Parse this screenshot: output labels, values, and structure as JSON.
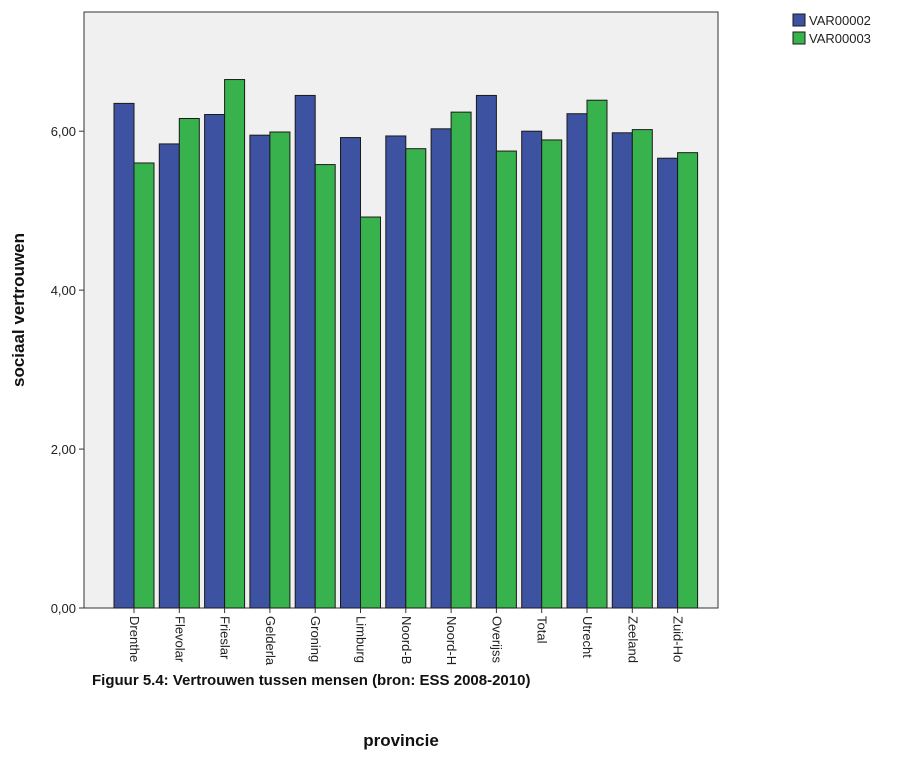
{
  "chart_data": {
    "type": "bar",
    "categories": [
      "Drenthe",
      "Flevoland",
      "Friesland",
      "Gelderland",
      "Groningen",
      "Limburg",
      "Noord-Brabant",
      "Noord-Holland",
      "Overijssel",
      "Total",
      "Utrecht",
      "Zeeland",
      "Zuid-Holland"
    ],
    "category_labels_visible": [
      "Drenthe",
      "Flevolar",
      "Frieslar",
      "Gelderla",
      "Groning",
      "Limburg",
      "Noord-B",
      "Noord-H",
      "Overijss",
      "Total",
      "Utrecht",
      "Zeeland",
      "Zuid-Ho"
    ],
    "series": [
      {
        "name": "VAR00002",
        "color": "#3d52a1",
        "values": [
          6.35,
          5.84,
          6.21,
          5.95,
          6.45,
          5.92,
          5.94,
          6.03,
          6.45,
          6.0,
          6.22,
          5.98,
          5.66
        ]
      },
      {
        "name": "VAR00003",
        "color": "#37b24d",
        "values": [
          5.6,
          6.16,
          6.65,
          5.99,
          5.58,
          4.92,
          5.78,
          6.24,
          5.75,
          5.89,
          6.39,
          6.02,
          5.73
        ]
      }
    ],
    "xlabel": "provincie",
    "ylabel": "sociaal vertrouwen",
    "ylim": [
      0,
      7.5
    ],
    "yticks": [
      "0,00",
      "2,00",
      "4,00",
      "6,00"
    ],
    "ytick_values": [
      0,
      2,
      4,
      6
    ],
    "grid": false,
    "legend_position": "top-right",
    "plot_background": "#f0f0f0"
  },
  "caption": "Figuur 5.4: Vertrouwen tussen mensen (bron: ESS 2008-2010)"
}
